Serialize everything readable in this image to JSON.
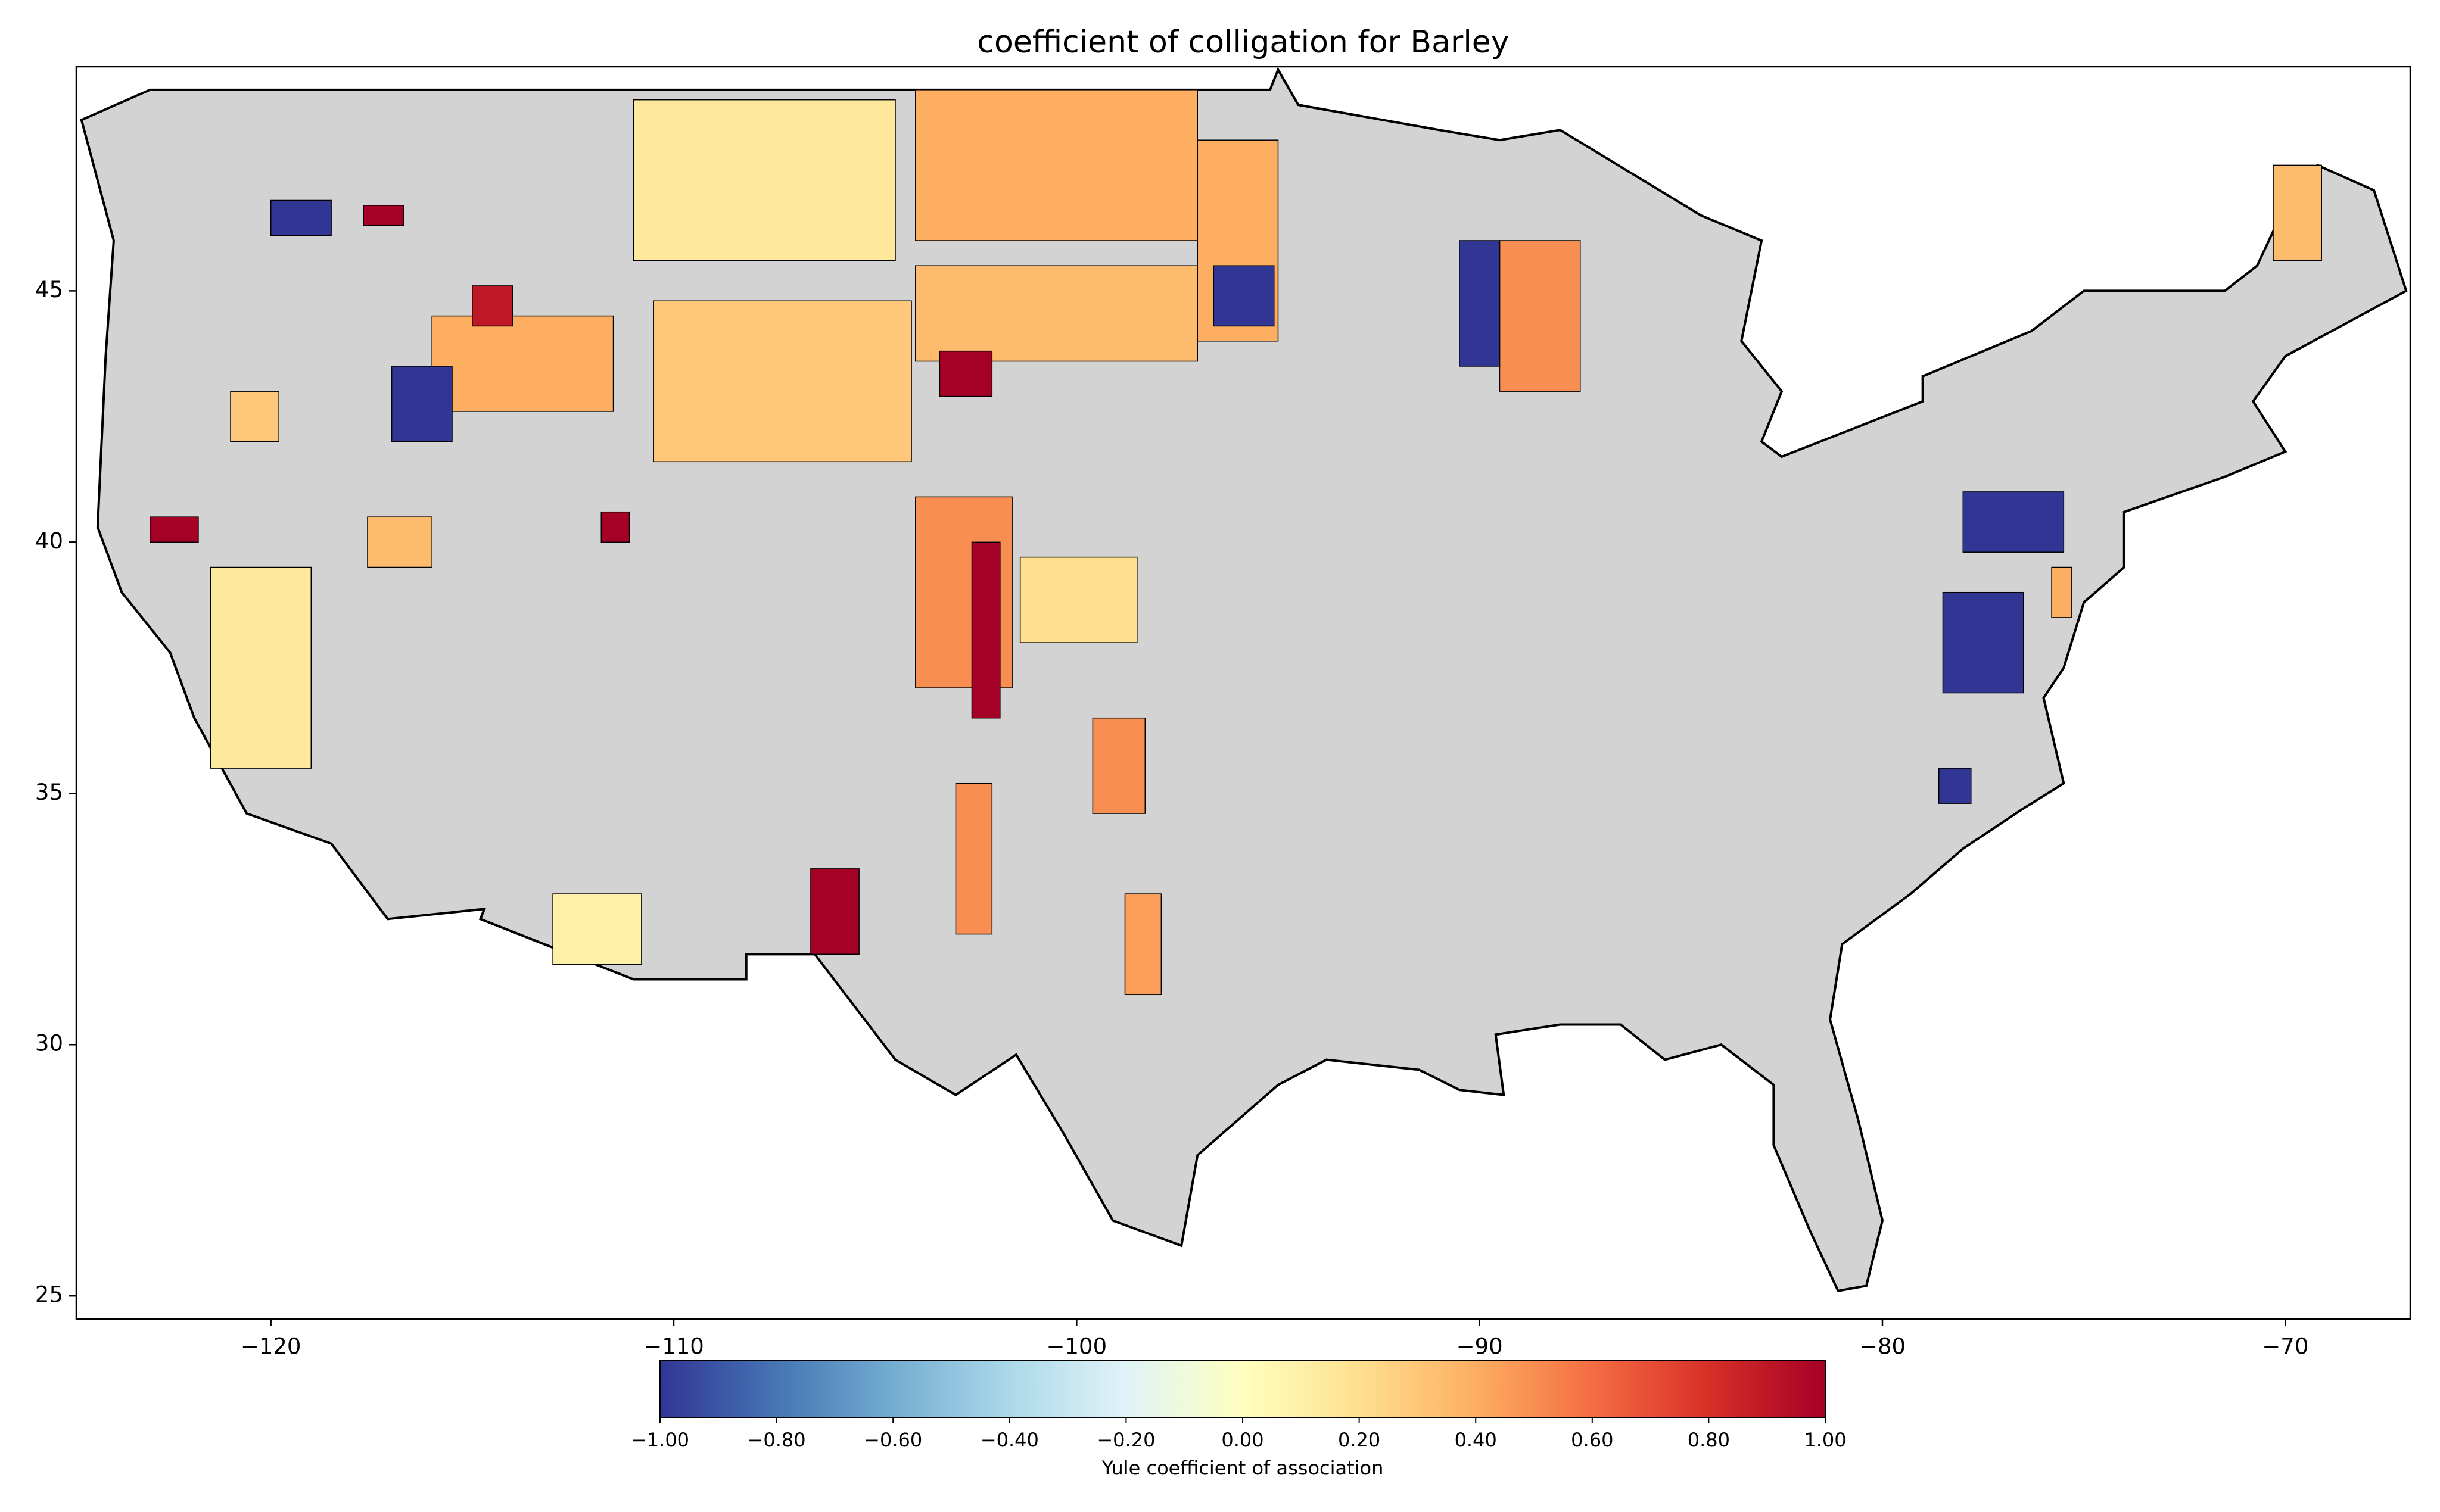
{
  "chart_data": {
    "type": "choropleth",
    "title": "coefficient of colligation for Barley",
    "xlim": [
      -124.83,
      -66.9
    ],
    "ylim": [
      24.54,
      49.46
    ],
    "xticks": [
      {
        "value": -120,
        "label": "−120"
      },
      {
        "value": -110,
        "label": "−110"
      },
      {
        "value": -100,
        "label": "−100"
      },
      {
        "value": -90,
        "label": "−90"
      },
      {
        "value": -80,
        "label": "−80"
      },
      {
        "value": -70,
        "label": "−70"
      }
    ],
    "yticks": [
      25,
      30,
      35,
      40,
      45
    ],
    "missing_color": "#d3d3d3",
    "colormap": [
      "#313695",
      "#4575b4",
      "#74add1",
      "#abd9e9",
      "#e0f3f8",
      "#ffffbf",
      "#fee090",
      "#fdae61",
      "#f46d43",
      "#d73027",
      "#a50026"
    ],
    "values": [
      -1,
      1,
      0.15,
      0.4,
      0.35,
      0.3,
      0.4,
      0.9,
      -1,
      0.3,
      0.15,
      1,
      0.5,
      1,
      0.2,
      0.5,
      0.5,
      0.4,
      -1,
      0.5,
      -1,
      -1,
      -1,
      -1,
      0.35,
      0.1,
      1,
      0.35,
      1,
      0.4,
      0.45,
      1
    ],
    "colorbar": {
      "label": "Yule coefficient of association",
      "lim": [
        -1,
        1
      ],
      "ticks": [
        {
          "value": -1,
          "label": "−1.00"
        },
        {
          "value": -0.8,
          "label": "−0.80"
        },
        {
          "value": -0.6,
          "label": "−0.60"
        },
        {
          "value": -0.4,
          "label": "−0.40"
        },
        {
          "value": -0.2,
          "label": "−0.20"
        },
        {
          "value": 0,
          "label": "0.00"
        },
        {
          "value": 0.2,
          "label": "0.20"
        },
        {
          "value": 0.4,
          "label": "0.40"
        },
        {
          "value": 0.6,
          "label": "0.60"
        },
        {
          "value": 0.8,
          "label": "0.80"
        },
        {
          "value": 1,
          "label": "1.00"
        }
      ]
    }
  }
}
